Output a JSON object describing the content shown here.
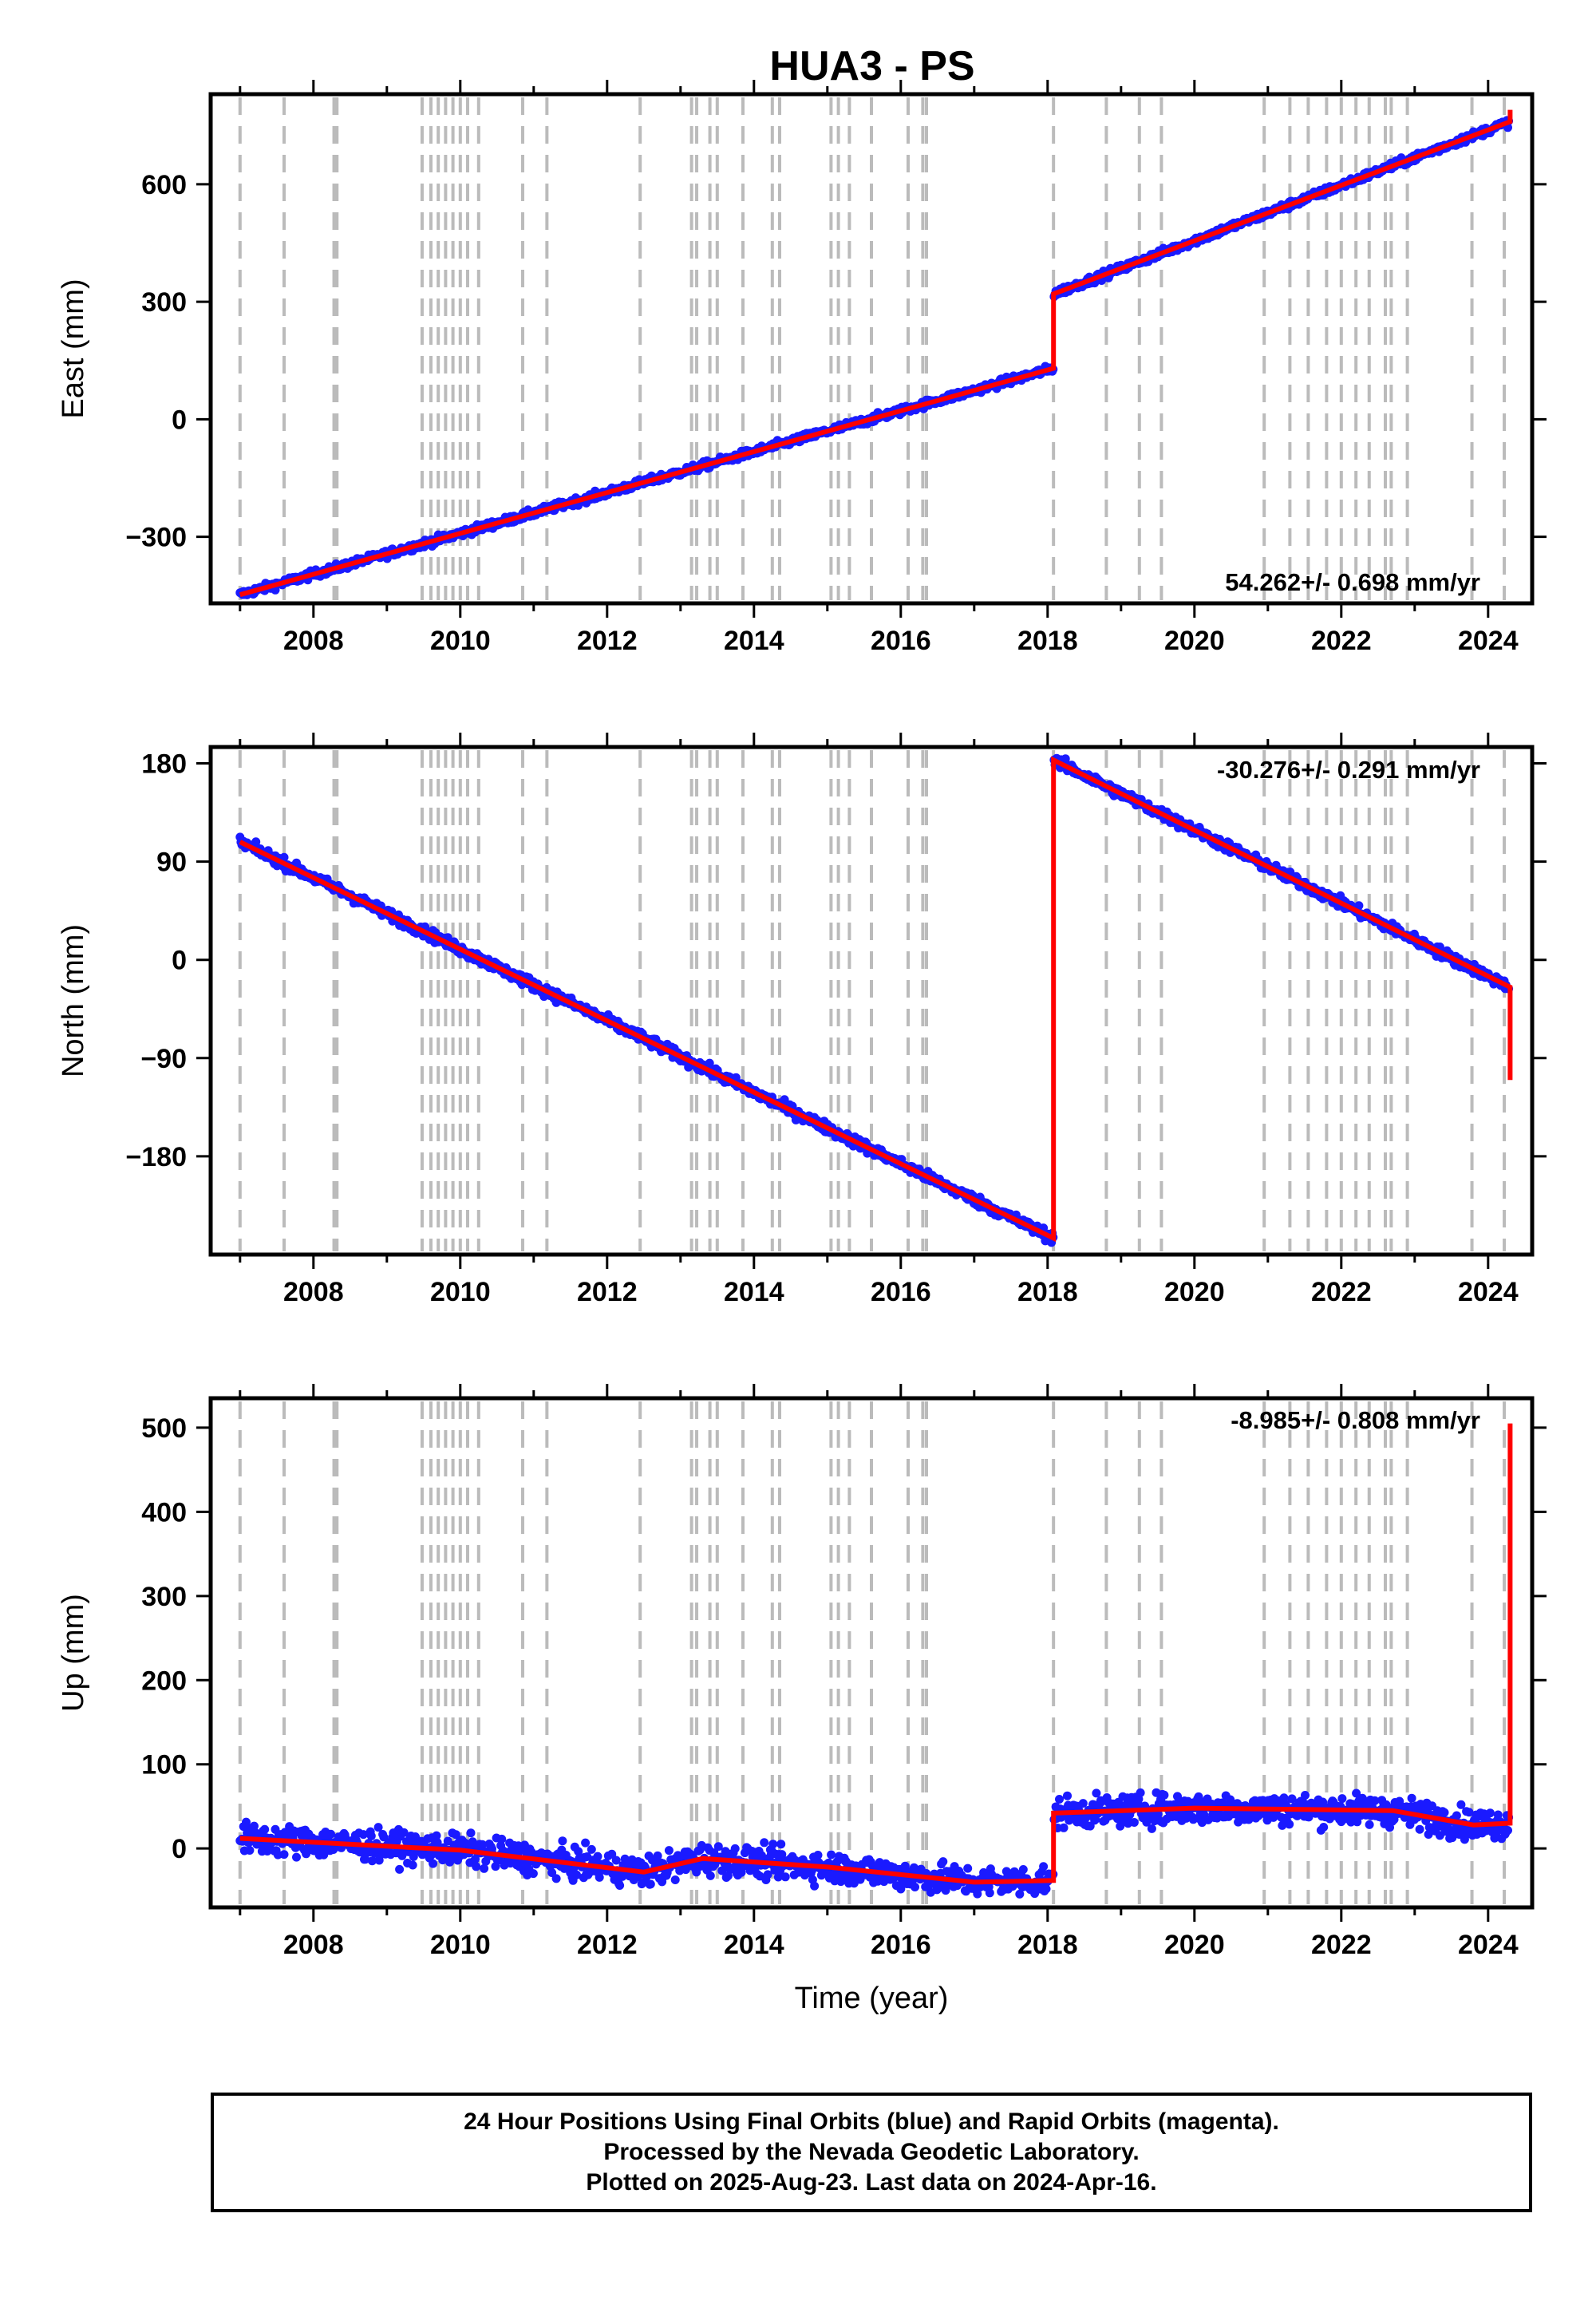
{
  "chart_data": {
    "type": "scatter",
    "title": "HUA3 - PS",
    "xlabel": "Time (year)",
    "xlim": [
      2006.6,
      2024.6
    ],
    "x_ticks": [
      2008,
      2010,
      2012,
      2014,
      2016,
      2018,
      2020,
      2022,
      2024
    ],
    "event_lines": [
      2007.0,
      2007.6,
      2008.28,
      2008.32,
      2009.48,
      2009.6,
      2009.7,
      2009.8,
      2009.9,
      2010.0,
      2010.1,
      2010.25,
      2010.85,
      2011.18,
      2012.45,
      2013.15,
      2013.22,
      2013.4,
      2013.5,
      2013.85,
      2014.25,
      2014.35,
      2015.05,
      2015.15,
      2015.3,
      2015.6,
      2016.1,
      2016.3,
      2016.35,
      2018.08,
      2018.8,
      2019.25,
      2019.55,
      2020.95,
      2021.3,
      2021.55,
      2021.8,
      2022.0,
      2022.2,
      2022.38,
      2022.6,
      2022.68,
      2022.9,
      2023.78,
      2024.22
    ],
    "panels": [
      {
        "ylabel": "East (mm)",
        "ylim": [
          -470,
          830
        ],
        "y_ticks": [
          600,
          300,
          0,
          -300
        ],
        "rate_text": "54.262+/- 0.698 mm/yr",
        "model": [
          [
            2007.0,
            -448
          ],
          [
            2018.08,
            130
          ],
          [
            2018.08,
            320
          ],
          [
            2024.3,
            760
          ],
          [
            2024.3,
            790
          ]
        ],
        "offsets": [
          [
            2018.08,
            190
          ]
        ]
      },
      {
        "ylabel": "North (mm)",
        "ylim": [
          -270,
          195
        ],
        "y_ticks": [
          180,
          90,
          0,
          -90,
          -180
        ],
        "rate_text": "-30.276+/- 0.291 mm/yr",
        "model": [
          [
            2007.0,
            108
          ],
          [
            2018.08,
            -255
          ],
          [
            2018.08,
            183
          ],
          [
            2024.3,
            -25
          ],
          [
            2024.3,
            -110
          ]
        ],
        "offsets": [
          [
            2018.08,
            438
          ],
          [
            2024.3,
            -85
          ]
        ]
      },
      {
        "ylabel": "Up (mm)",
        "ylim": [
          -70,
          535
        ],
        "y_ticks": [
          500,
          400,
          300,
          200,
          100,
          0
        ],
        "rate_text": "-8.985+/- 0.808 mm/yr",
        "model": [
          [
            2007.0,
            12
          ],
          [
            2010.0,
            -2
          ],
          [
            2012.5,
            -28
          ],
          [
            2013.3,
            -12
          ],
          [
            2015.0,
            -22
          ],
          [
            2017.0,
            -40
          ],
          [
            2018.08,
            -38
          ],
          [
            2018.08,
            42
          ],
          [
            2020.0,
            48
          ],
          [
            2022.7,
            45
          ],
          [
            2023.8,
            28
          ],
          [
            2024.3,
            30
          ],
          [
            2024.3,
            505
          ]
        ],
        "offsets": [
          [
            2018.08,
            80
          ],
          [
            2024.3,
            475
          ]
        ]
      }
    ],
    "legend": [
      "24 Hour Positions Using Final Orbits (blue) and Rapid Orbits (magenta).",
      "Processed by the Nevada Geodetic Laboratory.",
      "Plotted on 2025-Aug-23. Last data on 2024-Apr-16."
    ]
  },
  "colors": {
    "data_points": "#1a1aff",
    "model_line": "#ff0000",
    "event_lines": "#bbbbbb"
  }
}
